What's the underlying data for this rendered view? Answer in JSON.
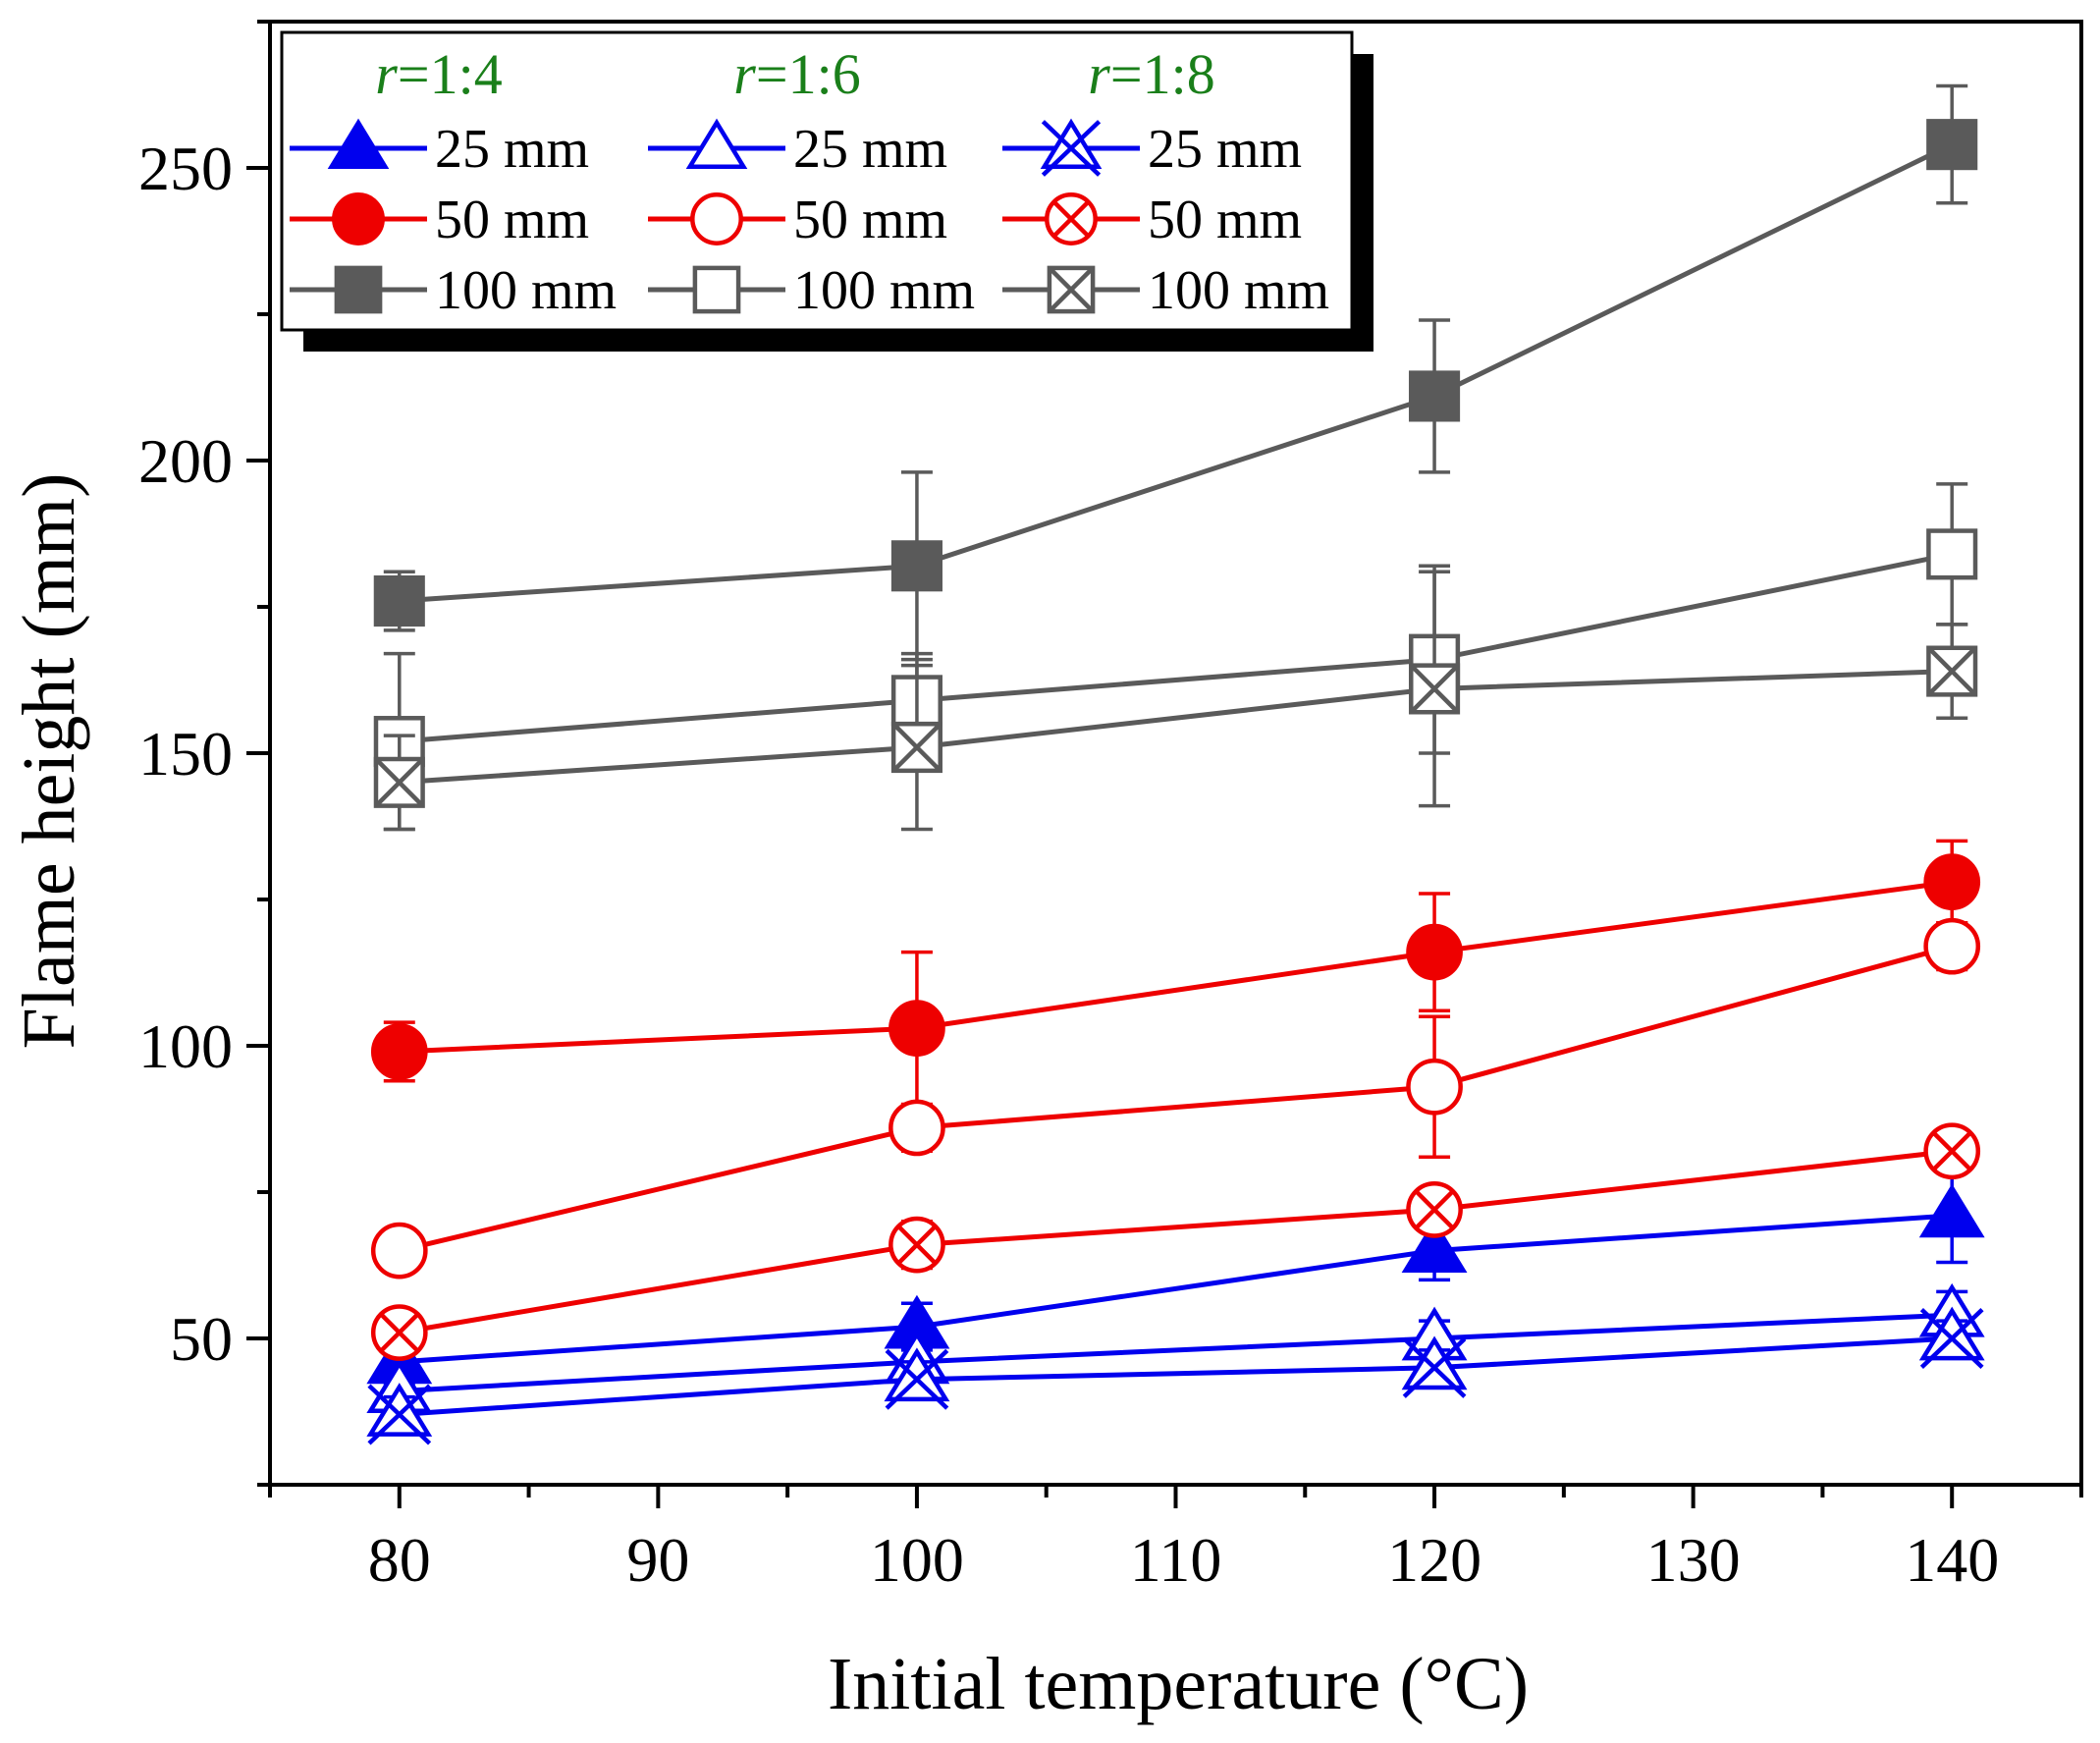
{
  "chart_data": {
    "type": "line",
    "xlabel": "Initial temperature (°C)",
    "ylabel": "Flame height (mm)",
    "xlim": [
      75,
      145
    ],
    "ylim": [
      25,
      275
    ],
    "x_ticks": [
      80,
      90,
      100,
      110,
      120,
      130,
      140
    ],
    "y_ticks": [
      50,
      100,
      150,
      200,
      250
    ],
    "x_tick_labels": [
      "80",
      "90",
      "100",
      "110",
      "120",
      "130",
      "140"
    ],
    "y_tick_labels": [
      "50",
      "100",
      "150",
      "200",
      "250"
    ],
    "legend": {
      "headers": [
        {
          "prefix": "r",
          "suffix": "=1:4"
        },
        {
          "prefix": "r",
          "suffix": "=1:6"
        },
        {
          "prefix": "r",
          "suffix": "=1:8"
        }
      ],
      "placement": "top-left"
    },
    "colors": {
      "blue": "#0000ee",
      "red": "#ee0000",
      "gray": "#5a5a5a",
      "header": "#1a7f1a"
    },
    "x": [
      80,
      100,
      120,
      140
    ],
    "series": [
      {
        "name": "25 mm",
        "ratio": "1:4",
        "color": "blue",
        "marker": "triangle-filled",
        "values": [
          46,
          52,
          65,
          71
        ],
        "errors": [
          4,
          4,
          5,
          8
        ]
      },
      {
        "name": "25 mm",
        "ratio": "1:6",
        "color": "blue",
        "marker": "triangle-open",
        "values": [
          41,
          46,
          50,
          54
        ],
        "errors": [
          3,
          3,
          3,
          4
        ]
      },
      {
        "name": "25 mm",
        "ratio": "1:8",
        "color": "blue",
        "marker": "star-open",
        "values": [
          37,
          43,
          45,
          50
        ],
        "errors": [
          3,
          3,
          3,
          3
        ]
      },
      {
        "name": "50 mm",
        "ratio": "1:4",
        "color": "red",
        "marker": "circle-filled",
        "values": [
          99,
          103,
          116,
          128
        ],
        "errors": [
          5,
          13,
          10,
          7
        ]
      },
      {
        "name": "50 mm",
        "ratio": "1:6",
        "color": "red",
        "marker": "circle-open",
        "values": [
          65,
          86,
          93,
          117
        ],
        "errors": [
          3,
          4,
          12,
          4
        ]
      },
      {
        "name": "50 mm",
        "ratio": "1:8",
        "color": "red",
        "marker": "circle-x",
        "values": [
          51,
          66,
          72,
          82
        ],
        "errors": [
          3,
          4,
          3,
          3
        ]
      },
      {
        "name": "100 mm",
        "ratio": "1:4",
        "color": "gray",
        "marker": "square-filled",
        "values": [
          176,
          182,
          211,
          254
        ],
        "errors": [
          5,
          16,
          13,
          10
        ]
      },
      {
        "name": "100 mm",
        "ratio": "1:6",
        "color": "gray",
        "marker": "square-open",
        "values": [
          152,
          159,
          166,
          184
        ],
        "errors": [
          15,
          8,
          16,
          12
        ]
      },
      {
        "name": "100 mm",
        "ratio": "1:8",
        "color": "gray",
        "marker": "square-x",
        "values": [
          145,
          151,
          161,
          164
        ],
        "errors": [
          8,
          14,
          20,
          8
        ]
      }
    ]
  }
}
